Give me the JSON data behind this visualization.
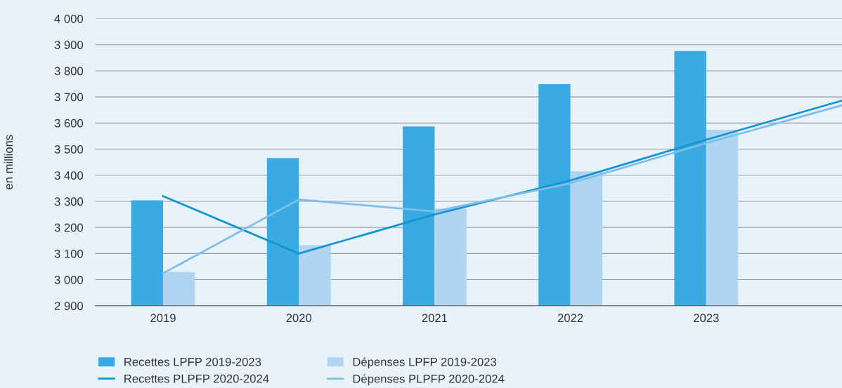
{
  "chart_data": {
    "type": "bar",
    "ylabel": "en millions",
    "x": [
      2019,
      2020,
      2021,
      2022,
      2023
    ],
    "series": [
      {
        "name": "Recettes LPFP 2019-2023",
        "color": "#3aabe2",
        "values": [
          3304,
          3466,
          3587,
          3749,
          3876
        ]
      },
      {
        "name": "Dépenses LPFP 2019-2023",
        "color": "#b1d5f1",
        "values": [
          3029,
          3132,
          3272,
          3415,
          3574
        ]
      },
      {
        "name": "Recettes PLPFP 2020-2024",
        "type": "line",
        "color": "#1596d3",
        "x": [
          2019,
          2020,
          2021,
          2022,
          2023,
          2024
        ],
        "values": [
          3320,
          3100,
          3250,
          3380,
          3536,
          3686
        ]
      },
      {
        "name": "Dépenses PLPFP 2020-2024",
        "type": "line",
        "color": "#80bde9",
        "x": [
          2019,
          2020,
          2021,
          2022,
          2023,
          2024
        ],
        "values": [
          3024,
          3307,
          3261,
          3369,
          3523,
          3668
        ]
      }
    ],
    "xlim": [
      2018.5,
      2024
    ],
    "xticks": [
      2019,
      2020,
      2021,
      2022,
      2023
    ],
    "ylim": [
      2900,
      4000
    ],
    "yticks": [
      {
        "value": 2900,
        "label": "2 900"
      },
      {
        "value": 3000,
        "label": "3 000"
      },
      {
        "value": 3100,
        "label": "3 100"
      },
      {
        "value": 3200,
        "label": "3 200"
      },
      {
        "value": 3300,
        "label": "3 300"
      },
      {
        "value": 3400,
        "label": "3 400"
      },
      {
        "value": 3500,
        "label": "3 500"
      },
      {
        "value": 3600,
        "label": "3 600"
      },
      {
        "value": 3700,
        "label": "3 700"
      },
      {
        "value": 3800,
        "label": "3 800"
      },
      {
        "value": 3900,
        "label": "3 900"
      },
      {
        "value": 4000,
        "label": "4 000"
      }
    ],
    "grid": "y",
    "legend": "bottom",
    "marker": "none",
    "line_style": "solid"
  }
}
